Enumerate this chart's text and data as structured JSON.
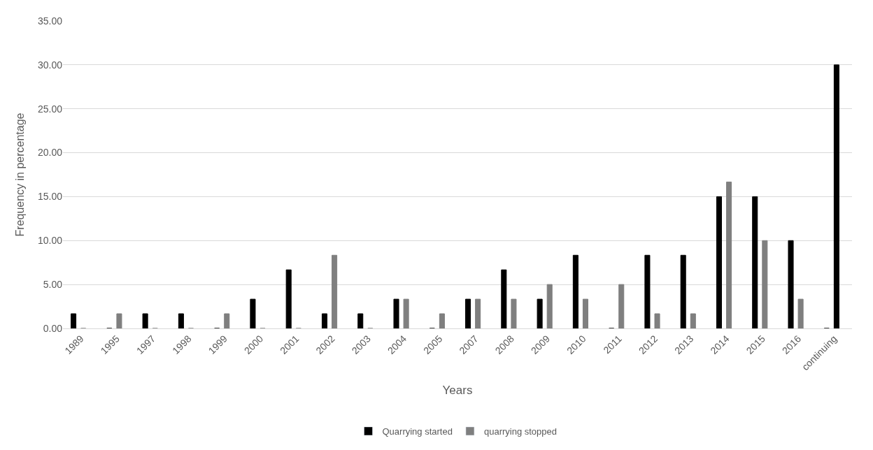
{
  "chart_data": {
    "type": "bar",
    "xlabel": "Years",
    "ylabel": "Frequency in percentage",
    "categories": [
      "1989",
      "1995",
      "1997",
      "1998",
      "1999",
      "2000",
      "2001",
      "2002",
      "2003",
      "2004",
      "2005",
      "2007",
      "2008",
      "2009",
      "2010",
      "2011",
      "2012",
      "2013",
      "2014",
      "2015",
      "2016",
      "continuing"
    ],
    "series": [
      {
        "name": "Quarrying started",
        "color": "#000000",
        "values": [
          1.67,
          0,
          1.67,
          1.67,
          0,
          3.33,
          6.67,
          1.67,
          1.67,
          3.33,
          0,
          3.33,
          6.67,
          3.33,
          8.33,
          0,
          8.33,
          8.33,
          15,
          15,
          10,
          0
        ]
      },
      {
        "name": "quarrying stopped",
        "color": "#7f7f7f",
        "colors": [
          "#7f7f7f",
          "#7f7f7f",
          "#7f7f7f",
          "#7f7f7f",
          "#7f7f7f",
          "#7f7f7f",
          "#7f7f7f",
          "#7f7f7f",
          "#7f7f7f",
          "#7f7f7f",
          "#7f7f7f",
          "#7f7f7f",
          "#7f7f7f",
          "#7f7f7f",
          "#7f7f7f",
          "#7f7f7f",
          "#7f7f7f",
          "#7f7f7f",
          "#7f7f7f",
          "#7f7f7f",
          "#7f7f7f",
          "#000000"
        ],
        "values": [
          0,
          1.67,
          0,
          0,
          1.67,
          0,
          0,
          8.33,
          0,
          3.33,
          1.67,
          3.33,
          3.33,
          5,
          3.33,
          5,
          1.67,
          1.67,
          16.67,
          10,
          3.33,
          30
        ]
      }
    ],
    "ylim": [
      0,
      35
    ],
    "yticks": [
      {
        "value": 0,
        "label": "0.00"
      },
      {
        "value": 5,
        "label": "5.00"
      },
      {
        "value": 10,
        "label": "10.00"
      },
      {
        "value": 15,
        "label": "15.00"
      },
      {
        "value": 20,
        "label": "20.00"
      },
      {
        "value": 25,
        "label": "25.00"
      },
      {
        "value": 30,
        "label": "30.00"
      },
      {
        "value": 35,
        "label": "35.00"
      }
    ],
    "grid": "y",
    "legend": "bottom"
  }
}
